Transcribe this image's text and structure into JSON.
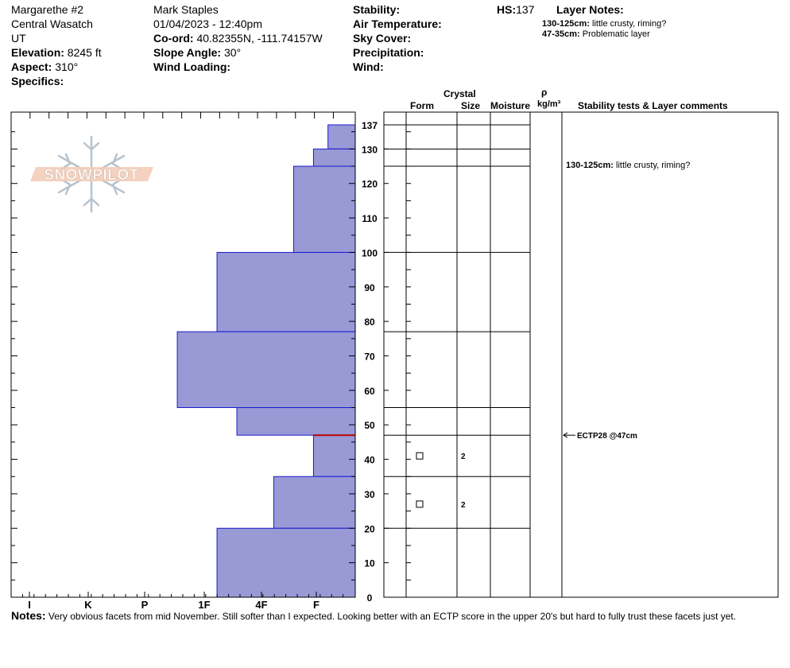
{
  "header": {
    "site": "Margarethe #2",
    "range": "Central Wasatch",
    "state": "UT",
    "elevation_label": "Elevation:",
    "elevation_value": "8245 ft",
    "aspect_label": "Aspect:",
    "aspect_value": "310°",
    "specifics_label": "Specifics:",
    "observer": "Mark Staples",
    "datetime": "01/04/2023 - 12:40pm",
    "coord_label": "Co-ord:",
    "coord_value": "40.82355N, -111.74157W",
    "slope_label": "Slope Angle:",
    "slope_value": "30°",
    "wind_loading_label": "Wind Loading:",
    "stability_label": "Stability:",
    "air_temp_label": "Air Temperature:",
    "sky_label": "Sky Cover:",
    "precip_label": "Precipitation:",
    "wind_label": "Wind:",
    "hs_label": "HS:",
    "hs_value": "137",
    "layer_notes_title": "Layer Notes:",
    "layer_notes": [
      {
        "range": "130-125cm:",
        "text": "little crusty, riming?"
      },
      {
        "range": "47-35cm:",
        "text": "Problematic layer"
      }
    ]
  },
  "columns": {
    "crystal": "Crystal",
    "form": "Form",
    "size": "Size",
    "moisture": "Moisture",
    "rho": "ρ",
    "density_unit": "kg/m³",
    "stability": "Stability tests & Layer comments"
  },
  "logo_text": "SNOWPILOT",
  "notes": {
    "label": "Notes:",
    "text": "Very obvious facets from mid November. Still softer than I expected. Looking better with an ECTP score in the upper 20's but hard to fully trust these facets just yet."
  },
  "chart_data": {
    "type": "bar",
    "orientation": "horizontal",
    "hardness_scale": [
      "I",
      "K",
      "P",
      "1F",
      "4F",
      "F"
    ],
    "hardness_levels": {
      "F": 1,
      "4F": 2,
      "1F": 3,
      "P": 4,
      "K": 5,
      "I": 6
    },
    "ylim": [
      0,
      137
    ],
    "y_ticks": [
      0,
      10,
      20,
      30,
      40,
      50,
      60,
      70,
      80,
      90,
      100,
      110,
      120,
      130,
      137
    ],
    "layers": [
      {
        "top": 137,
        "bottom": 130,
        "hardness": 0.7
      },
      {
        "top": 130,
        "bottom": 125,
        "hardness": 1.05
      },
      {
        "top": 125,
        "bottom": 100,
        "hardness": 1.4
      },
      {
        "top": 100,
        "bottom": 77,
        "hardness": 2.75
      },
      {
        "top": 77,
        "bottom": 55,
        "hardness": 3.45
      },
      {
        "top": 55,
        "bottom": 47,
        "hardness": 2.4
      },
      {
        "top": 47,
        "bottom": 35,
        "hardness": 1.05
      },
      {
        "top": 35,
        "bottom": 20,
        "hardness": 1.75
      },
      {
        "top": 20,
        "bottom": 0,
        "hardness": 2.75
      }
    ],
    "boundaries": [
      137,
      130,
      125,
      100,
      77,
      55,
      47,
      35,
      20
    ],
    "crystals": [
      {
        "height": 41,
        "form": "faceted",
        "size": "2"
      },
      {
        "height": 27,
        "form": "faceted",
        "size": "2"
      }
    ],
    "weak_layer": {
      "height": 47,
      "color": "#c00000"
    },
    "stability_comments": [
      {
        "height": 125.5,
        "range": "130-125cm:",
        "text": "little crusty, riming?"
      }
    ],
    "tests": [
      {
        "height": 47,
        "text": "ECTP28 @47cm"
      }
    ],
    "colors": {
      "fill": "#9999d6",
      "edge": "#1a1acc",
      "weak": "#c00000"
    }
  }
}
